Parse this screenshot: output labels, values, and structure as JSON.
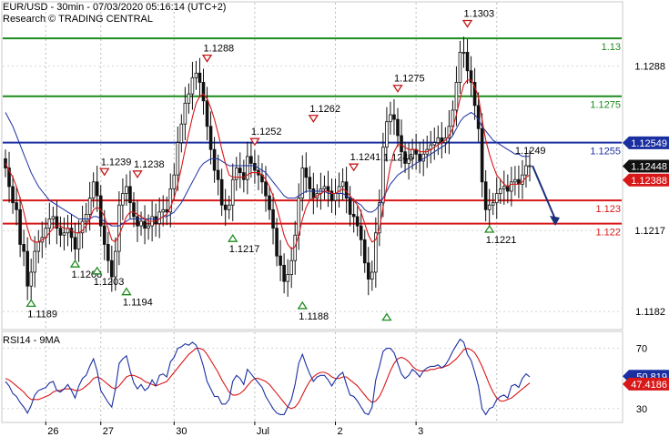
{
  "header": {
    "title": "EUR/USD - 30min - 07/03/2020 05:16:14 (UTC+2)",
    "research": "Research © TRADING CENTRAL"
  },
  "chart_data": [
    {
      "type": "line",
      "name": "price-panel",
      "ylim": [
        1.1175,
        1.1315
      ],
      "right_axis_ticks": [
        "1.1288",
        "1.1217",
        "1.1182"
      ],
      "horizontal_levels": [
        {
          "value": 1.13,
          "label": "1.13",
          "color": "#1e8c1e"
        },
        {
          "value": 1.1275,
          "label": "1.1275",
          "color": "#1e8c1e"
        },
        {
          "value": 1.1255,
          "label": "1.1255",
          "color": "#1a2fa0"
        },
        {
          "value": 1.123,
          "label": "1.123",
          "color": "#d81818"
        },
        {
          "value": 1.122,
          "label": "1.122",
          "color": "#d81818"
        }
      ],
      "price_tags": [
        {
          "value": 1.12549,
          "label": "1.12549",
          "bg": "#1a2fa0",
          "fg": "#ffffff"
        },
        {
          "value": 1.12448,
          "label": "1.12448",
          "bg": "#111111",
          "fg": "#ffffff"
        },
        {
          "value": 1.12388,
          "label": "1.12388",
          "bg": "#d81818",
          "fg": "#ffffff"
        }
      ],
      "close": [
        1.1244,
        1.1236,
        1.1229,
        1.1226,
        1.1211,
        1.1208,
        1.1193,
        1.1199,
        1.1208,
        1.1212,
        1.1214,
        1.1218,
        1.1222,
        1.1223,
        1.1218,
        1.1215,
        1.1216,
        1.1218,
        1.1214,
        1.1209,
        1.1216,
        1.1221,
        1.1224,
        1.1231,
        1.1238,
        1.1232,
        1.1219,
        1.1211,
        1.1204,
        1.1197,
        1.1208,
        1.1228,
        1.1233,
        1.1236,
        1.1229,
        1.1223,
        1.1219,
        1.1221,
        1.1218,
        1.1219,
        1.1223,
        1.122,
        1.1225,
        1.1226,
        1.1225,
        1.1235,
        1.1241,
        1.1255,
        1.1263,
        1.1272,
        1.1276,
        1.1283,
        1.1285,
        1.1281,
        1.1273,
        1.1262,
        1.1252,
        1.1243,
        1.1239,
        1.1228,
        1.1226,
        1.1228,
        1.1239,
        1.1244,
        1.1242,
        1.1239,
        1.1249,
        1.1246,
        1.1243,
        1.1241,
        1.1238,
        1.1232,
        1.1226,
        1.1218,
        1.1206,
        1.1202,
        1.1195,
        1.1198,
        1.1204,
        1.1215,
        1.1231,
        1.1244,
        1.124,
        1.1235,
        1.1231,
        1.1233,
        1.1235,
        1.1236,
        1.1234,
        1.123,
        1.1233,
        1.1236,
        1.1238,
        1.1231,
        1.1224,
        1.1223,
        1.1219,
        1.1213,
        1.1203,
        1.1196,
        1.1199,
        1.1216,
        1.1229,
        1.1253,
        1.1264,
        1.1267,
        1.1265,
        1.1258,
        1.1251,
        1.1246,
        1.1248,
        1.1252,
        1.125,
        1.1247,
        1.125,
        1.1252,
        1.1254,
        1.1255,
        1.1257,
        1.1255,
        1.1257,
        1.1262,
        1.1269,
        1.1281,
        1.1294,
        1.1294,
        1.1286,
        1.1281,
        1.1271,
        1.1261,
        1.1238,
        1.1226,
        1.1228,
        1.1229,
        1.1233,
        1.1235,
        1.1236,
        1.1234,
        1.1238,
        1.1239,
        1.1237,
        1.1241,
        1.1245,
        1.1245
      ],
      "ma_red": [
        1.1246,
        1.1243,
        1.124,
        1.1236,
        1.1231,
        1.1225,
        1.1218,
        1.1213,
        1.1212,
        1.1212,
        1.1213,
        1.1214,
        1.1216,
        1.1218,
        1.1219,
        1.1219,
        1.1218,
        1.1218,
        1.1217,
        1.1216,
        1.1216,
        1.1217,
        1.1219,
        1.1222,
        1.1226,
        1.1227,
        1.1226,
        1.1223,
        1.1218,
        1.1213,
        1.1212,
        1.1215,
        1.1219,
        1.1223,
        1.1225,
        1.1225,
        1.1224,
        1.1223,
        1.1222,
        1.1221,
        1.1221,
        1.1221,
        1.1222,
        1.1223,
        1.1224,
        1.1227,
        1.1231,
        1.1237,
        1.1244,
        1.1252,
        1.1259,
        1.1266,
        1.1272,
        1.1275,
        1.1276,
        1.1274,
        1.127,
        1.1265,
        1.1259,
        1.1252,
        1.1246,
        1.1241,
        1.124,
        1.124,
        1.124,
        1.124,
        1.1241,
        1.1242,
        1.1242,
        1.1242,
        1.1241,
        1.1239,
        1.1236,
        1.1232,
        1.1227,
        1.1221,
        1.1215,
        1.1211,
        1.1209,
        1.121,
        1.1215,
        1.1222,
        1.1227,
        1.123,
        1.1231,
        1.1232,
        1.1233,
        1.1234,
        1.1234,
        1.1233,
        1.1233,
        1.1234,
        1.1235,
        1.1234,
        1.1232,
        1.123,
        1.1228,
        1.1225,
        1.122,
        1.1215,
        1.1212,
        1.1213,
        1.1218,
        1.1227,
        1.1236,
        1.1245,
        1.1251,
        1.1254,
        1.1254,
        1.1253,
        1.1252,
        1.1252,
        1.1252,
        1.1251,
        1.1251,
        1.1251,
        1.1252,
        1.1253,
        1.1254,
        1.1255,
        1.1256,
        1.1258,
        1.1261,
        1.1267,
        1.1274,
        1.128,
        1.1282,
        1.1282,
        1.1279,
        1.1275,
        1.1265,
        1.1256,
        1.125,
        1.1245,
        1.1241,
        1.1239,
        1.1237,
        1.1236,
        1.1237,
        1.1237,
        1.1237,
        1.1238,
        1.124,
        1.1241
      ],
      "ma_blue": [
        1.1268,
        1.1265,
        1.1262,
        1.1258,
        1.1254,
        1.125,
        1.1246,
        1.1242,
        1.1239,
        1.1236,
        1.1234,
        1.1232,
        1.123,
        1.1229,
        1.1228,
        1.1227,
        1.1226,
        1.1225,
        1.1224,
        1.1223,
        1.1222,
        1.1222,
        1.1222,
        1.1222,
        1.1223,
        1.1223,
        1.1222,
        1.1221,
        1.122,
        1.1219,
        1.1219,
        1.1219,
        1.122,
        1.1221,
        1.1222,
        1.1222,
        1.1222,
        1.1222,
        1.1222,
        1.1222,
        1.1222,
        1.1222,
        1.1222,
        1.1223,
        1.1223,
        1.1224,
        1.1225,
        1.1227,
        1.1229,
        1.1232,
        1.1235,
        1.1238,
        1.1241,
        1.1244,
        1.1246,
        1.1247,
        1.1248,
        1.1248,
        1.1248,
        1.1247,
        1.1246,
        1.1245,
        1.1245,
        1.1245,
        1.1245,
        1.1245,
        1.1245,
        1.1245,
        1.1245,
        1.1244,
        1.1243,
        1.1242,
        1.124,
        1.1238,
        1.1236,
        1.1234,
        1.1232,
        1.1231,
        1.1231,
        1.1231,
        1.1232,
        1.1233,
        1.1234,
        1.1234,
        1.1234,
        1.1234,
        1.1234,
        1.1234,
        1.1233,
        1.1233,
        1.1233,
        1.1233,
        1.1233,
        1.1232,
        1.1231,
        1.123,
        1.1229,
        1.1228,
        1.1226,
        1.1225,
        1.1225,
        1.1226,
        1.1228,
        1.1231,
        1.1234,
        1.1237,
        1.1239,
        1.1241,
        1.1242,
        1.1243,
        1.1244,
        1.1245,
        1.1246,
        1.1247,
        1.1248,
        1.1249,
        1.125,
        1.1251,
        1.1252,
        1.1253,
        1.1254,
        1.1256,
        1.1258,
        1.1261,
        1.1264,
        1.1266,
        1.1267,
        1.1268,
        1.1267,
        1.1265,
        1.1262,
        1.126,
        1.1258,
        1.1256,
        1.1255,
        1.1254,
        1.1253,
        1.1252,
        1.1251,
        1.125,
        1.125,
        1.1249,
        1.1249,
        1.1249
      ],
      "annotations": [
        {
          "label": "1.1303",
          "value": 1.1303,
          "index": 126,
          "kind": "high"
        },
        {
          "label": "1.1288",
          "value": 1.1288,
          "index": 55,
          "kind": "high"
        },
        {
          "label": "1.1275",
          "value": 1.1275,
          "index": 107,
          "kind": "high"
        },
        {
          "label": "1.1262",
          "value": 1.1262,
          "index": 84,
          "kind": "high"
        },
        {
          "label": "1.1252",
          "value": 1.1252,
          "index": 68,
          "kind": "high"
        },
        {
          "label": "1.1249",
          "value": 1.1249,
          "index": 140,
          "kind": "note"
        },
        {
          "label": "1.1241",
          "value": 1.1241,
          "index": 95,
          "kind": "high"
        },
        {
          "label": "1.1246",
          "value": 1.1246,
          "index": 104,
          "kind": "note"
        },
        {
          "label": "1.1239",
          "value": 1.1239,
          "index": 27,
          "kind": "high"
        },
        {
          "label": "1.1238",
          "value": 1.1238,
          "index": 36,
          "kind": "high"
        },
        {
          "label": "1.1221",
          "value": 1.1221,
          "index": 132,
          "kind": "low"
        },
        {
          "label": "1.1217",
          "value": 1.1217,
          "index": 62,
          "kind": "low"
        },
        {
          "label": "1.1206",
          "value": 1.1206,
          "index": 19,
          "kind": "low"
        },
        {
          "label": "1.1203",
          "value": 1.1203,
          "index": 25,
          "kind": "low"
        },
        {
          "label": "1.1194",
          "value": 1.1194,
          "index": 33,
          "kind": "low"
        },
        {
          "label": "1.1189",
          "value": 1.1189,
          "index": 7,
          "kind": "low"
        },
        {
          "label": "1.1188",
          "value": 1.1188,
          "index": 81,
          "kind": "low"
        },
        {
          "label": "",
          "value": 1.1183,
          "index": 104,
          "kind": "low"
        }
      ]
    },
    {
      "type": "line",
      "name": "rsi-panel",
      "title": "RSI14 - 9MA",
      "ylim": [
        22,
        80
      ],
      "ticks": [
        "70",
        "30"
      ],
      "x_labels": [
        "26",
        "27",
        "30",
        "Jul",
        "2",
        "3"
      ],
      "tags": [
        {
          "value": 50.819,
          "label": "50.819",
          "bg": "#1a2fa0",
          "fg": "#ffffff"
        },
        {
          "value": 47.4186,
          "label": "47.4186",
          "bg": "#d81818",
          "fg": "#ffffff"
        }
      ],
      "rsi": [
        48,
        45,
        40,
        38,
        34,
        31,
        27,
        32,
        39,
        42,
        43,
        44,
        47,
        48,
        42,
        41,
        43,
        46,
        42,
        37,
        45,
        50,
        52,
        58,
        63,
        55,
        42,
        38,
        34,
        31,
        43,
        60,
        63,
        65,
        55,
        47,
        43,
        46,
        42,
        44,
        49,
        45,
        52,
        53,
        51,
        61,
        64,
        70,
        71,
        73,
        72,
        74,
        72,
        66,
        58,
        48,
        43,
        38,
        38,
        33,
        33,
        36,
        48,
        52,
        50,
        46,
        56,
        53,
        50,
        47,
        44,
        38,
        34,
        30,
        27,
        26,
        26,
        31,
        36,
        46,
        60,
        66,
        59,
        53,
        48,
        51,
        52,
        52,
        49,
        45,
        49,
        52,
        54,
        46,
        39,
        38,
        35,
        31,
        27,
        26,
        31,
        49,
        58,
        68,
        70,
        70,
        67,
        60,
        53,
        50,
        52,
        56,
        54,
        51,
        55,
        57,
        58,
        58,
        59,
        57,
        59,
        63,
        68,
        72,
        76,
        74,
        66,
        62,
        54,
        45,
        30,
        26,
        30,
        31,
        36,
        38,
        39,
        37,
        45,
        46,
        44,
        50,
        53,
        51
      ],
      "rsi_ma": [
        50,
        49,
        47,
        45,
        43,
        41,
        38,
        36,
        36,
        36,
        37,
        38,
        39,
        41,
        42,
        42,
        43,
        43,
        43,
        42,
        42,
        43,
        45,
        47,
        50,
        51,
        50,
        48,
        46,
        44,
        43,
        45,
        48,
        51,
        52,
        52,
        51,
        50,
        48,
        47,
        46,
        45,
        46,
        47,
        48,
        51,
        54,
        57,
        60,
        63,
        66,
        68,
        70,
        70,
        69,
        66,
        62,
        58,
        54,
        49,
        45,
        41,
        39,
        39,
        40,
        42,
        45,
        48,
        50,
        50,
        49,
        48,
        46,
        43,
        40,
        37,
        34,
        31,
        30,
        31,
        34,
        39,
        44,
        48,
        51,
        53,
        54,
        54,
        53,
        51,
        50,
        50,
        51,
        51,
        49,
        47,
        45,
        42,
        39,
        36,
        34,
        35,
        38,
        43,
        49,
        55,
        60,
        63,
        64,
        63,
        61,
        58,
        56,
        55,
        55,
        55,
        56,
        56,
        57,
        57,
        58,
        59,
        61,
        63,
        66,
        69,
        70,
        69,
        67,
        63,
        58,
        52,
        46,
        41,
        37,
        35,
        35,
        36,
        37,
        39,
        41,
        43,
        45,
        47
      ]
    }
  ]
}
